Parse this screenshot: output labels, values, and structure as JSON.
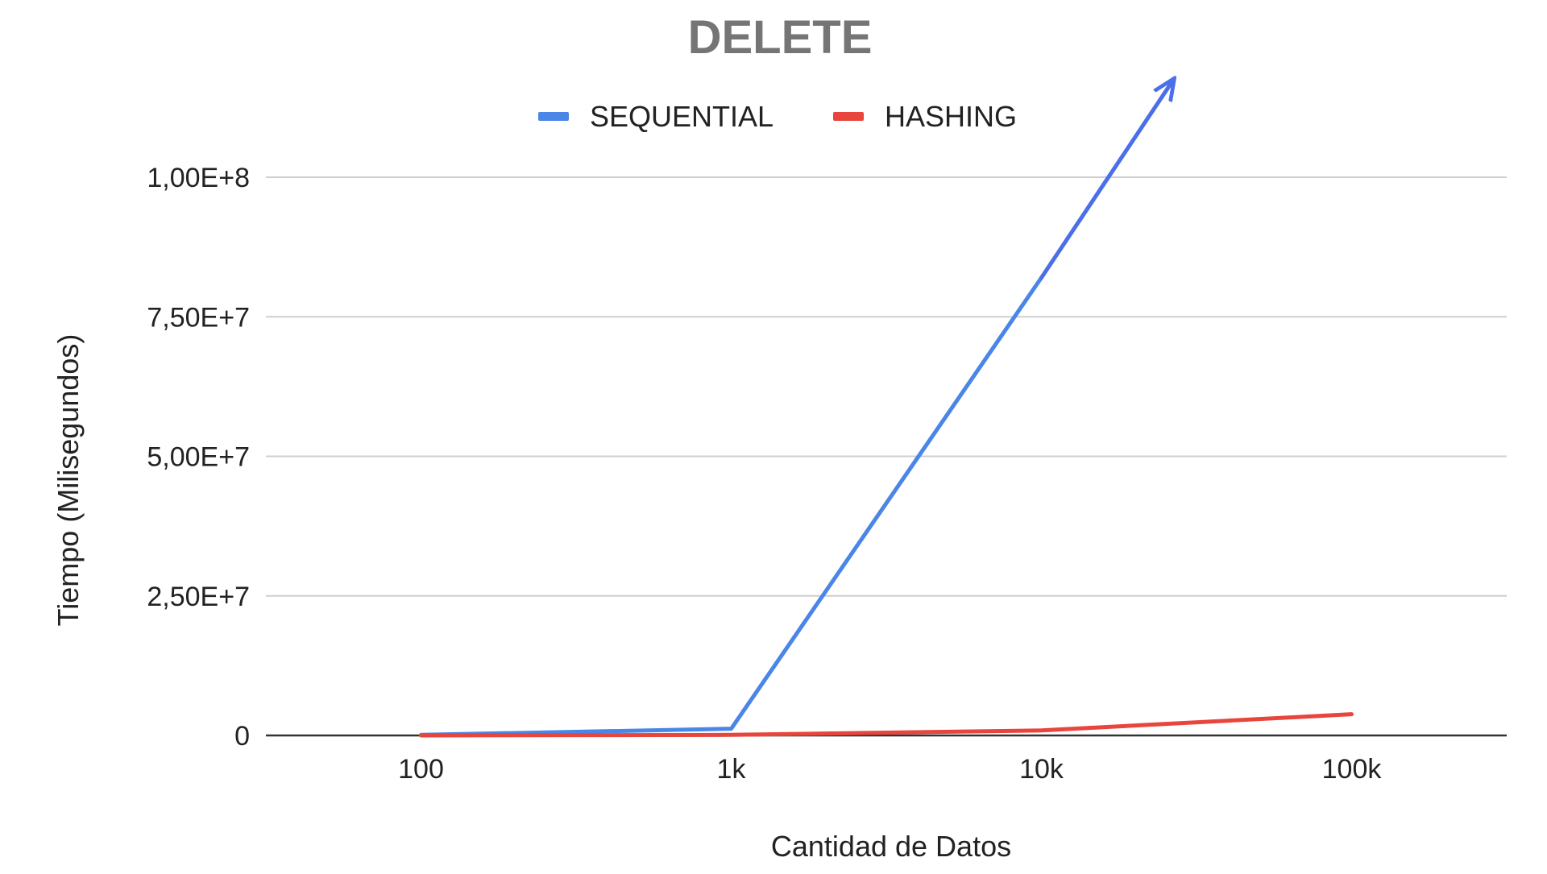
{
  "chart_data": {
    "type": "line",
    "title": "DELETE",
    "xlabel": "Cantidad de Datos",
    "ylabel": "Tiempo (Milisegundos)",
    "categories": [
      "100",
      "1k",
      "10k",
      "100k"
    ],
    "y_ticks": [
      0,
      25000000,
      50000000,
      75000000,
      100000000
    ],
    "y_tick_labels": [
      "0",
      "2,50E+7",
      "5,00E+7",
      "7,50E+7",
      "1,00E+8"
    ],
    "ylim": [
      0,
      100000000
    ],
    "grid": true,
    "legend": "top-center",
    "series": [
      {
        "name": "SEQUENTIAL",
        "color": "#4a86e8",
        "values": [
          100000,
          1200000,
          82000000,
          null
        ]
      },
      {
        "name": "HASHING",
        "color": "#e8453c",
        "values": [
          0,
          100000,
          900000,
          3800000
        ]
      }
    ],
    "annotations": [
      {
        "type": "arrow",
        "color": "#4a6fe8",
        "from": {
          "category": "10k",
          "y": 82000000
        },
        "to": {
          "category_pos": 2.42,
          "y": 117000000
        }
      }
    ]
  }
}
